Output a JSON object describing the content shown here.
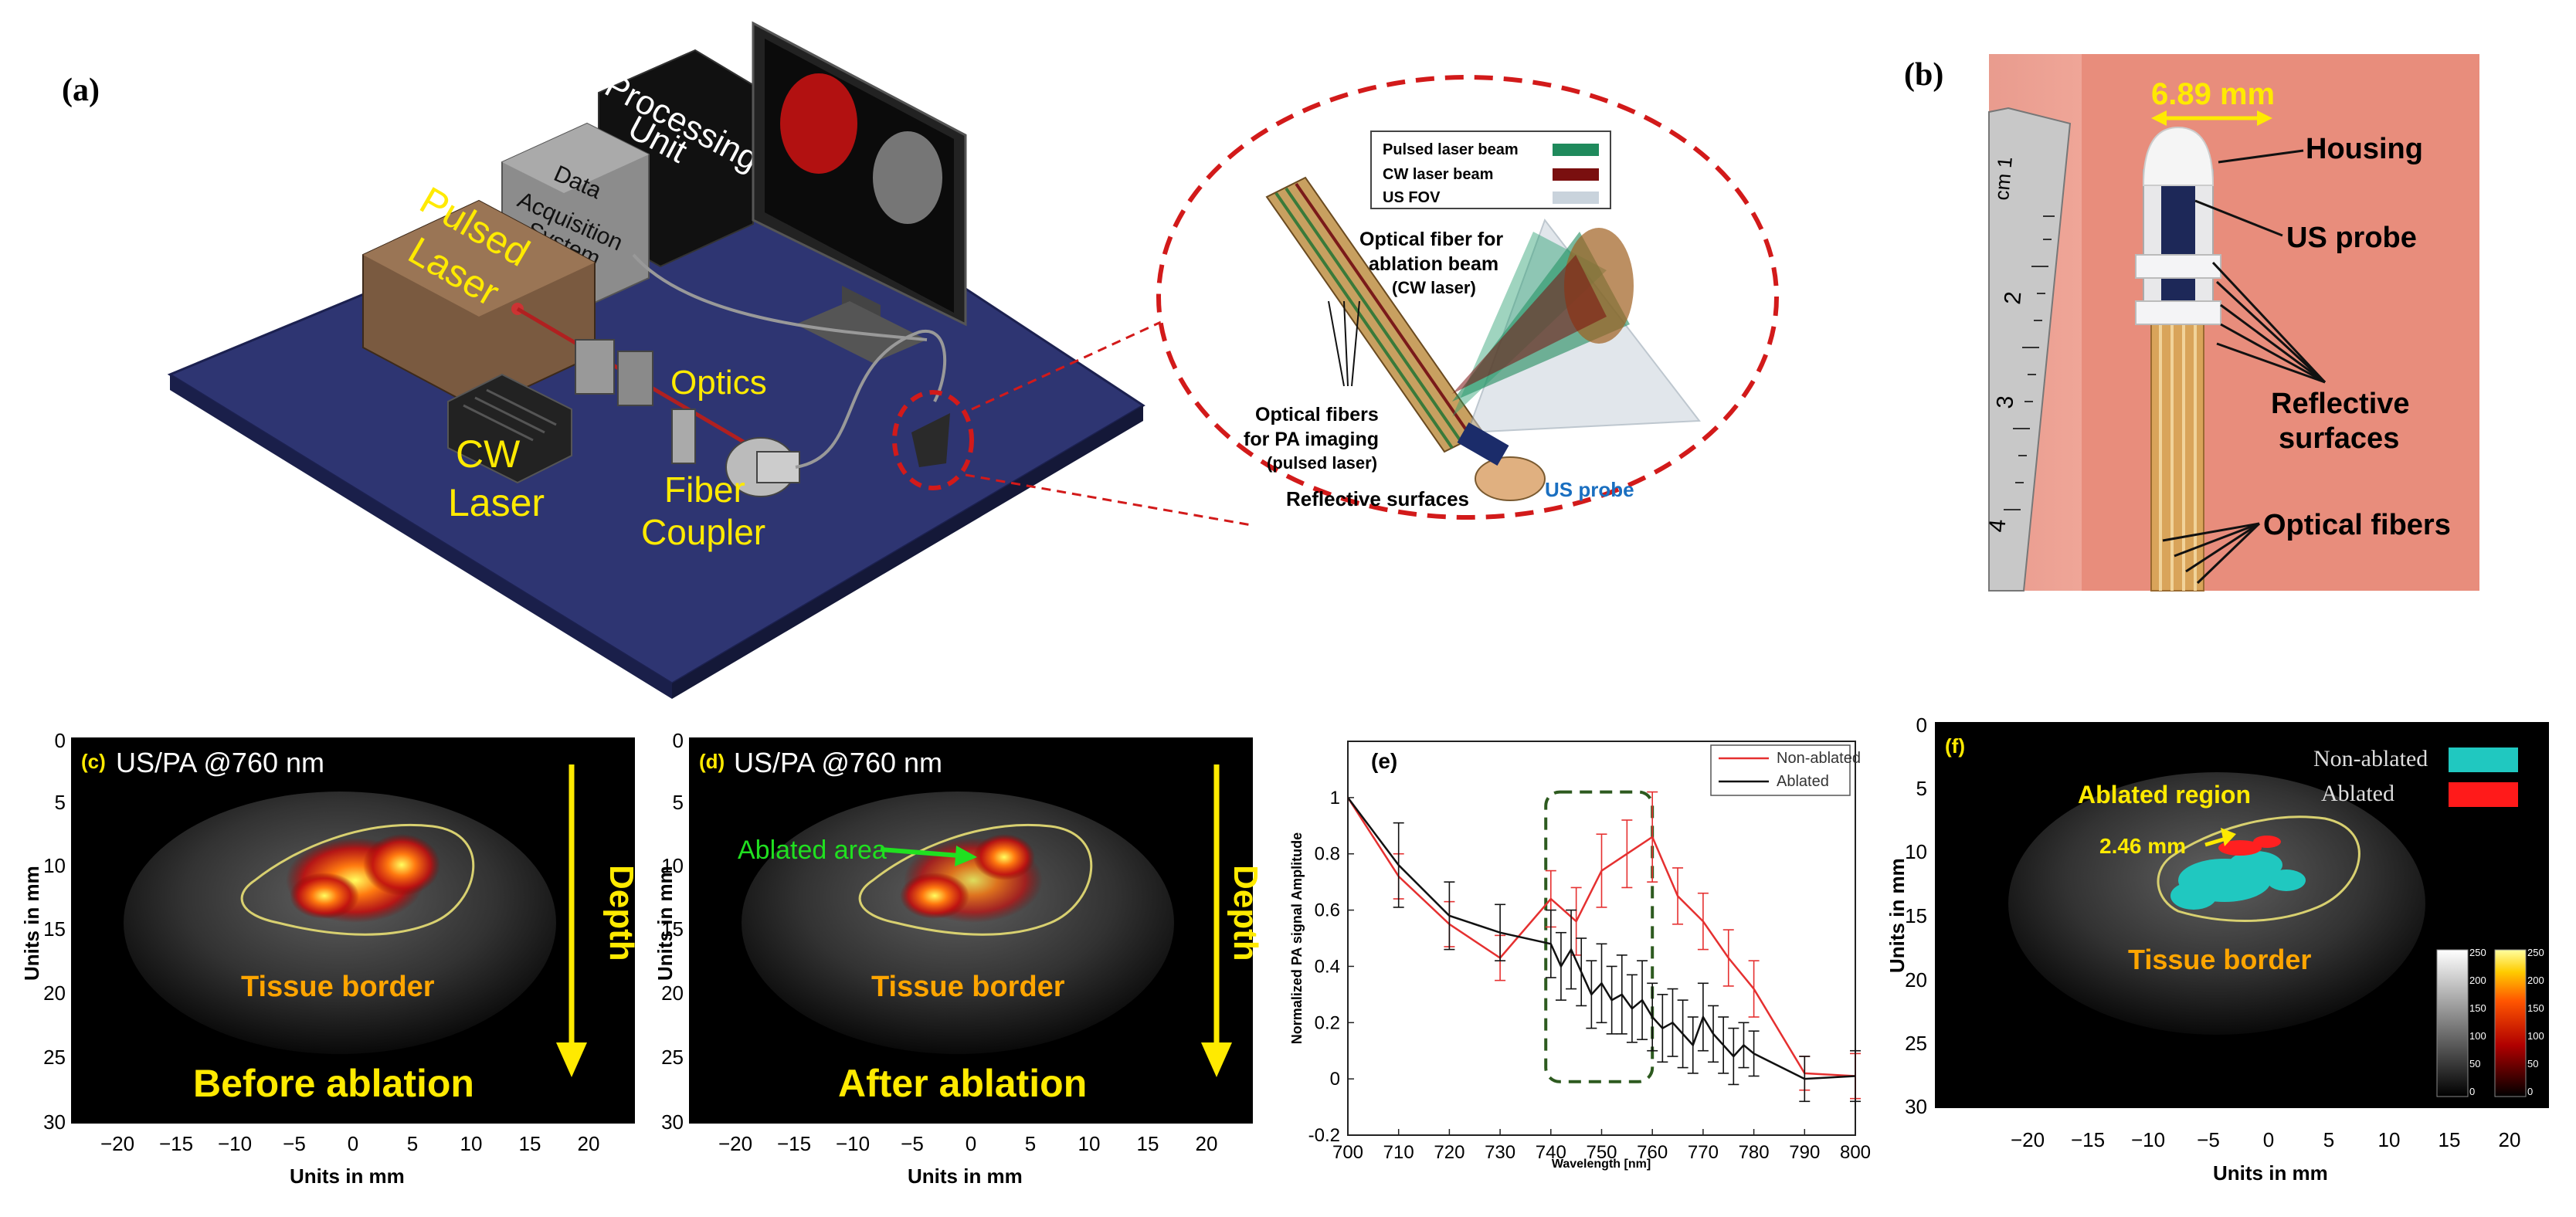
{
  "panel_a": {
    "label": "(a)",
    "equipment": {
      "processing_unit_line1": "Processing",
      "processing_unit_line2": "Unit",
      "daq_line1": "Data",
      "daq_line2": "Acquisition",
      "daq_line3": "System",
      "pulsed_laser_line1": "Pulsed",
      "pulsed_laser_line2": "Laser",
      "optics": "Optics",
      "cw_laser_line1": "CW",
      "cw_laser_line2": "Laser",
      "fiber_coupler_line1": "Fiber",
      "fiber_coupler_line2": "Coupler"
    },
    "zoom": {
      "legend": [
        {
          "label": "Pulsed laser beam",
          "color": "#1f8a5c"
        },
        {
          "label": "CW laser beam",
          "color": "#7a0f0f"
        },
        {
          "label": "US FOV",
          "color": "#c9d3dc"
        }
      ],
      "ablation_fiber_line1": "Optical fiber for",
      "ablation_fiber_line2": "ablation beam",
      "ablation_fiber_line3": "(CW laser)",
      "pa_fibers_line1": "Optical fibers",
      "pa_fibers_line2": "for PA imaging",
      "pa_fibers_line3": "(pulsed laser)",
      "reflective": "Reflective surfaces",
      "us_probe": "US probe"
    }
  },
  "panel_b": {
    "label": "(b)",
    "dimension": "6.89 mm",
    "housing": "Housing",
    "us_probe": "US probe",
    "reflective_line1": "Reflective",
    "reflective_line2": "surfaces",
    "optical_fibers": "Optical fibers",
    "ruler_cm": "cm 1",
    "ruler_marks": [
      "2",
      "3",
      "4"
    ]
  },
  "panel_c": {
    "label": "(c)",
    "title": "US/PA @760 nm",
    "tissue": "Tissue border",
    "caption": "Before ablation",
    "depth": "Depth",
    "ylabel": "Units in mm",
    "xlabel": "Units in mm",
    "yticks": [
      "0",
      "5",
      "10",
      "15",
      "20",
      "25",
      "30"
    ],
    "xticks": [
      "−20",
      "−15",
      "−10",
      "−5",
      "0",
      "5",
      "10",
      "15",
      "20"
    ]
  },
  "panel_d": {
    "label": "(d)",
    "title": "US/PA @760 nm",
    "ablated_area": "Ablated area",
    "tissue": "Tissue border",
    "caption": "After ablation",
    "depth": "Depth",
    "ylabel": "Units in mm",
    "xlabel": "Units in mm",
    "yticks": [
      "0",
      "5",
      "10",
      "15",
      "20",
      "25",
      "30"
    ],
    "xticks": [
      "−20",
      "−15",
      "−10",
      "−5",
      "0",
      "5",
      "10",
      "15",
      "20"
    ]
  },
  "panel_e": {
    "label": "(e)"
  },
  "panel_f": {
    "label": "(f)",
    "legend_nonablated": "Non-ablated",
    "legend_ablated": "Ablated",
    "ablated_region": "Ablated region",
    "dimension": "2.46 mm",
    "tissue": "Tissue border",
    "ylabel": "Units in mm",
    "xlabel": "Units in mm",
    "yticks": [
      "0",
      "5",
      "10",
      "15",
      "20",
      "25",
      "30"
    ],
    "xticks": [
      "−20",
      "−15",
      "−10",
      "−5",
      "0",
      "5",
      "10",
      "15",
      "20"
    ],
    "cb_gray_ticks": [
      "250",
      "200",
      "150",
      "100",
      "50",
      "0"
    ],
    "cb_hot_ticks": [
      "250",
      "200",
      "150",
      "100",
      "50",
      "0"
    ]
  },
  "chart_data": {
    "type": "line",
    "xlabel": "Wavelength [nm]",
    "ylabel": "Normalized PA signal  Amplitude",
    "xlim": [
      700,
      800
    ],
    "ylim": [
      -0.2,
      1.2
    ],
    "xticks": [
      700,
      710,
      720,
      730,
      740,
      750,
      760,
      770,
      780,
      790,
      800
    ],
    "yticks": [
      -0.2,
      0,
      0.2,
      0.4,
      0.6,
      0.8,
      1
    ],
    "legend_position": "top-right",
    "series": [
      {
        "name": "Non-ablated",
        "color": "#e53030",
        "x": [
          700,
          710,
          720,
          730,
          740,
          745,
          750,
          755,
          760,
          765,
          770,
          775,
          780,
          790,
          800
        ],
        "y": [
          1.0,
          0.72,
          0.55,
          0.43,
          0.64,
          0.56,
          0.74,
          0.8,
          0.86,
          0.65,
          0.56,
          0.43,
          0.32,
          0.02,
          0.01
        ],
        "err": [
          0,
          0.08,
          0.08,
          0.08,
          0.1,
          0.12,
          0.13,
          0.12,
          0.16,
          0.1,
          0.1,
          0.1,
          0.1,
          0.06,
          0.08
        ]
      },
      {
        "name": "Ablated",
        "color": "#111111",
        "x": [
          700,
          710,
          720,
          730,
          740,
          742,
          744,
          746,
          748,
          750,
          752,
          754,
          756,
          758,
          760,
          762,
          764,
          766,
          768,
          770,
          772,
          774,
          776,
          778,
          780,
          790,
          800
        ],
        "y": [
          1.0,
          0.76,
          0.58,
          0.52,
          0.48,
          0.4,
          0.46,
          0.38,
          0.3,
          0.34,
          0.28,
          0.3,
          0.25,
          0.28,
          0.22,
          0.18,
          0.2,
          0.16,
          0.12,
          0.22,
          0.16,
          0.12,
          0.08,
          0.12,
          0.09,
          0.0,
          0.01
        ],
        "err": [
          0,
          0.15,
          0.12,
          0.1,
          0.12,
          0.12,
          0.14,
          0.12,
          0.12,
          0.14,
          0.12,
          0.14,
          0.12,
          0.14,
          0.12,
          0.12,
          0.12,
          0.12,
          0.1,
          0.12,
          0.1,
          0.1,
          0.1,
          0.08,
          0.08,
          0.08,
          0.09
        ]
      }
    ],
    "annotation": "dashed box 740–760 nm"
  }
}
